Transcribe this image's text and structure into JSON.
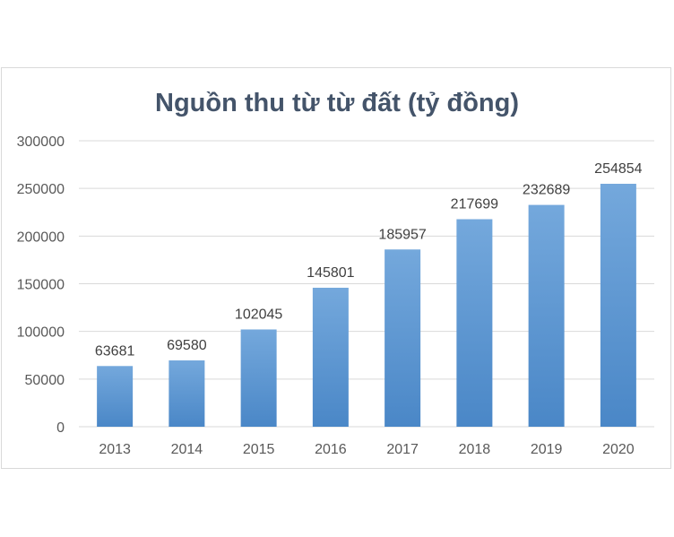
{
  "chart_data": {
    "type": "bar",
    "title": "Nguồn thu từ từ đất (tỷ đồng)",
    "xlabel": "",
    "ylabel": "",
    "categories": [
      "2013",
      "2014",
      "2015",
      "2016",
      "2017",
      "2018",
      "2019",
      "2020"
    ],
    "values": [
      63681,
      69580,
      102045,
      145801,
      185957,
      217699,
      232689,
      254854
    ],
    "data_labels": [
      "63681",
      "69580",
      "102045",
      "145801",
      "185957",
      "217699",
      "232689",
      "254854"
    ],
    "ylim": [
      0,
      300000
    ],
    "yticks": [
      0,
      50000,
      100000,
      150000,
      200000,
      250000,
      300000
    ],
    "ytick_labels": [
      "0",
      "50000",
      "100000",
      "150000",
      "200000",
      "250000",
      "300000"
    ],
    "grid": true,
    "legend": "none",
    "colors": {
      "bar_top": "#74a8dc",
      "bar_bottom": "#4a87c7",
      "grid": "#d9d9d9",
      "title": "#44546a",
      "text": "#595959"
    }
  }
}
